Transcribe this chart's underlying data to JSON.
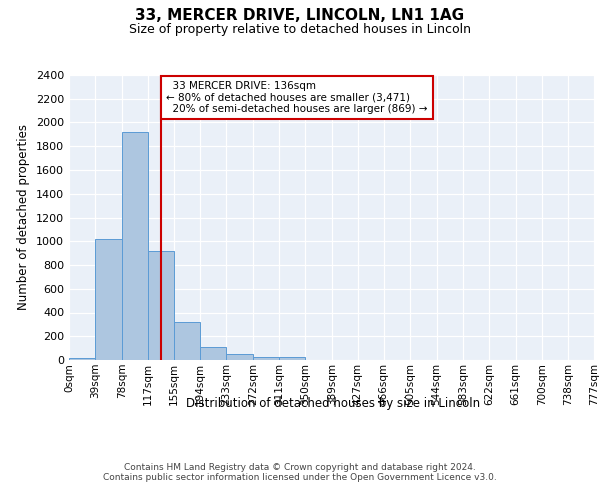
{
  "title_line1": "33, MERCER DRIVE, LINCOLN, LN1 1AG",
  "title_line2": "Size of property relative to detached houses in Lincoln",
  "xlabel": "Distribution of detached houses by size in Lincoln",
  "ylabel": "Number of detached properties",
  "bin_labels": [
    "0sqm",
    "39sqm",
    "78sqm",
    "117sqm",
    "155sqm",
    "194sqm",
    "233sqm",
    "272sqm",
    "311sqm",
    "350sqm",
    "389sqm",
    "427sqm",
    "466sqm",
    "505sqm",
    "544sqm",
    "583sqm",
    "622sqm",
    "661sqm",
    "700sqm",
    "738sqm",
    "777sqm"
  ],
  "bar_values": [
    20,
    1020,
    1920,
    920,
    320,
    110,
    50,
    25,
    25,
    0,
    0,
    0,
    0,
    0,
    0,
    0,
    0,
    0,
    0,
    0
  ],
  "bar_color": "#adc6e0",
  "bar_edgecolor": "#5b9bd5",
  "background_color": "#eaf0f8",
  "grid_color": "#ffffff",
  "vline_x": 136,
  "vline_color": "#cc0000",
  "annotation_text": "  33 MERCER DRIVE: 136sqm\n← 80% of detached houses are smaller (3,471)\n  20% of semi-detached houses are larger (869) →",
  "annotation_box_color": "#ffffff",
  "annotation_box_edgecolor": "#cc0000",
  "ylim": [
    0,
    2400
  ],
  "yticks": [
    0,
    200,
    400,
    600,
    800,
    1000,
    1200,
    1400,
    1600,
    1800,
    2000,
    2200,
    2400
  ],
  "footnote": "Contains HM Land Registry data © Crown copyright and database right 2024.\nContains public sector information licensed under the Open Government Licence v3.0.",
  "bin_edges": [
    0,
    39,
    78,
    117,
    155,
    194,
    233,
    272,
    311,
    350,
    389,
    427,
    466,
    505,
    544,
    583,
    622,
    661,
    700,
    738,
    777
  ]
}
